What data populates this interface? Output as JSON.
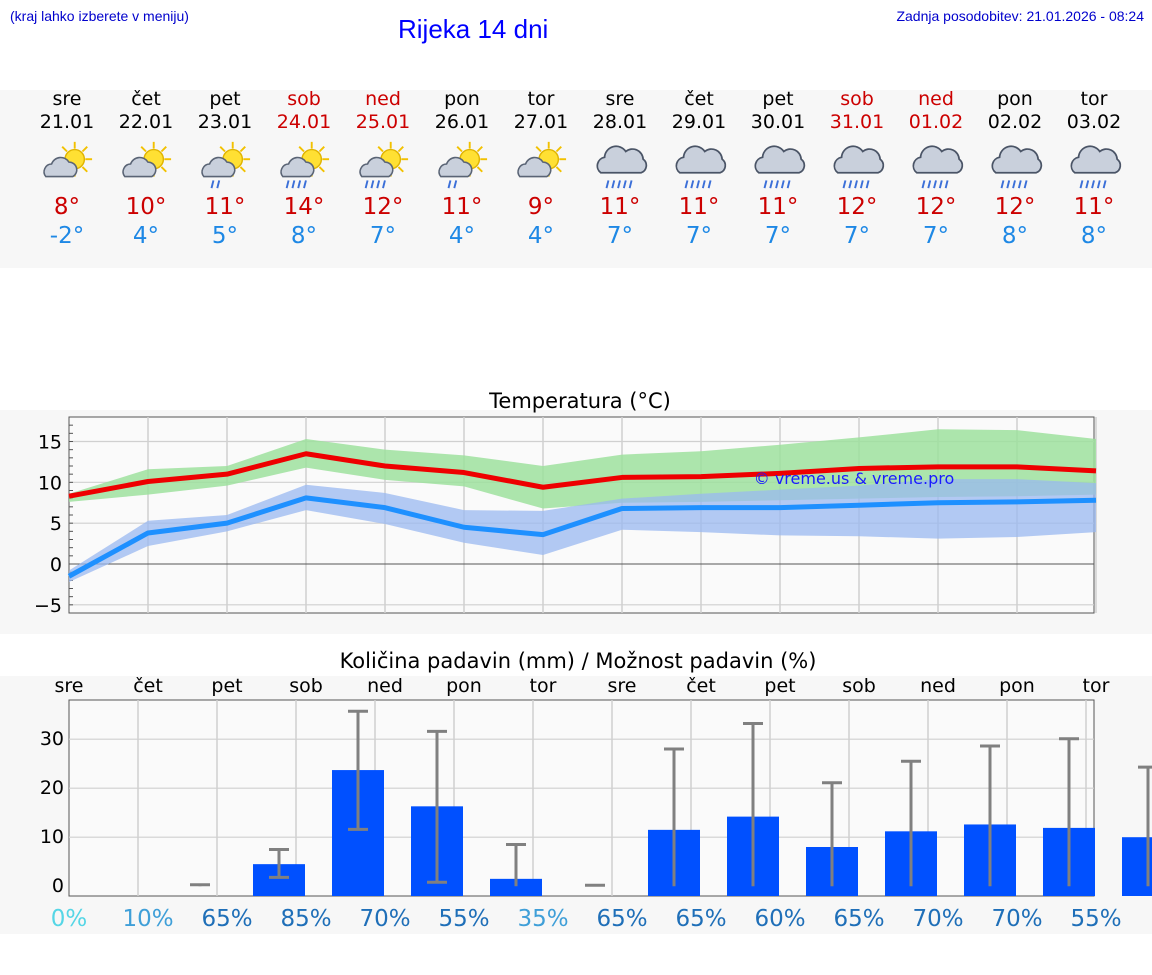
{
  "header": {
    "note": "(kraj lahko izberete v meniju)",
    "title": "Rijeka 14 dni",
    "updated": "Zadnja posodobitev: 21.01.2026 - 08:24"
  },
  "days": [
    {
      "name": "sre",
      "date": "21.01",
      "tmax": "8°",
      "tmin": "-2°",
      "icon": "partly-sunny-icon",
      "weekend": false
    },
    {
      "name": "čet",
      "date": "22.01",
      "tmax": "10°",
      "tmin": "4°",
      "icon": "partly-sunny-icon",
      "weekend": false
    },
    {
      "name": "pet",
      "date": "23.01",
      "tmax": "11°",
      "tmin": "5°",
      "icon": "sun-shower-icon",
      "weekend": false
    },
    {
      "name": "sob",
      "date": "24.01",
      "tmax": "14°",
      "tmin": "8°",
      "icon": "sun-heavy-rain-icon",
      "weekend": true
    },
    {
      "name": "ned",
      "date": "25.01",
      "tmax": "12°",
      "tmin": "7°",
      "icon": "sun-heavy-rain-icon",
      "weekend": true
    },
    {
      "name": "pon",
      "date": "26.01",
      "tmax": "11°",
      "tmin": "4°",
      "icon": "sun-shower-icon",
      "weekend": false
    },
    {
      "name": "tor",
      "date": "27.01",
      "tmax": "9°",
      "tmin": "4°",
      "icon": "partly-sunny-icon",
      "weekend": false
    },
    {
      "name": "sre",
      "date": "28.01",
      "tmax": "11°",
      "tmin": "7°",
      "icon": "rain-cloud-icon",
      "weekend": false
    },
    {
      "name": "čet",
      "date": "29.01",
      "tmax": "11°",
      "tmin": "7°",
      "icon": "rain-cloud-icon",
      "weekend": false
    },
    {
      "name": "pet",
      "date": "30.01",
      "tmax": "11°",
      "tmin": "7°",
      "icon": "rain-cloud-icon",
      "weekend": false
    },
    {
      "name": "sob",
      "date": "31.01",
      "tmax": "12°",
      "tmin": "7°",
      "icon": "rain-cloud-icon",
      "weekend": true
    },
    {
      "name": "ned",
      "date": "01.02",
      "tmax": "12°",
      "tmin": "7°",
      "icon": "rain-cloud-icon",
      "weekend": true
    },
    {
      "name": "pon",
      "date": "02.02",
      "tmax": "12°",
      "tmin": "8°",
      "icon": "rain-cloud-icon",
      "weekend": false
    },
    {
      "name": "tor",
      "date": "03.02",
      "tmax": "11°",
      "tmin": "8°",
      "icon": "rain-cloud-icon",
      "weekend": false
    }
  ],
  "colors": {
    "max_line": "#ee0000",
    "max_band": "#9ee09e",
    "min_line": "#1e90ff",
    "min_band": "#9ab8f0",
    "bar": "#0050ff",
    "err": "#808080",
    "weekend": "#cc0000",
    "min_text": "#1e88e5"
  },
  "chart_data": [
    {
      "type": "line",
      "title": "Temperatura (°C)",
      "watermark": "© vreme.us & vreme.pro",
      "x": [
        0,
        1,
        2,
        3,
        4,
        5,
        6,
        7,
        8,
        9,
        10,
        11,
        12,
        13
      ],
      "ylim": [
        -6,
        18
      ],
      "yticks": [
        -5,
        0,
        5,
        10,
        15
      ],
      "ytick_labels": [
        "−5",
        "0",
        "5",
        "10",
        "15"
      ],
      "series": [
        {
          "name": "max",
          "values": [
            8.3,
            10.1,
            11.0,
            13.5,
            12.0,
            11.2,
            9.4,
            10.6,
            10.7,
            11.1,
            11.7,
            11.9,
            11.9,
            11.4
          ],
          "band_low": [
            7.6,
            8.5,
            9.6,
            11.8,
            10.3,
            9.5,
            6.8,
            7.5,
            7.6,
            7.8,
            8.0,
            8.2,
            8.3,
            8.5
          ],
          "band_high": [
            8.6,
            11.6,
            12.0,
            15.3,
            14.0,
            13.3,
            12.0,
            13.4,
            13.8,
            14.6,
            15.5,
            16.5,
            16.4,
            15.3
          ]
        },
        {
          "name": "min",
          "values": [
            -1.5,
            3.8,
            5.0,
            8.1,
            6.9,
            4.5,
            3.6,
            6.8,
            6.9,
            6.9,
            7.2,
            7.5,
            7.6,
            7.8
          ],
          "band_low": [
            -2.2,
            2.2,
            4.0,
            6.6,
            4.9,
            2.6,
            1.1,
            4.2,
            3.9,
            3.5,
            3.4,
            3.1,
            3.3,
            3.9
          ],
          "band_high": [
            -0.8,
            5.3,
            6.0,
            9.7,
            8.7,
            6.6,
            6.5,
            8.0,
            8.6,
            9.1,
            9.6,
            10.4,
            10.4,
            9.9
          ]
        }
      ]
    },
    {
      "type": "bar",
      "title": "Količina padavin (mm) / Možnost padavin (%)",
      "categories": [
        "sre",
        "čet",
        "pet",
        "sob",
        "ned",
        "pon",
        "tor",
        "sre",
        "čet",
        "pet",
        "sob",
        "ned",
        "pon",
        "tor"
      ],
      "values": [
        0,
        0,
        4.5,
        23.7,
        16.3,
        1.5,
        0,
        11.5,
        14.2,
        8.0,
        11.2,
        12.6,
        11.9,
        10.0
      ],
      "err_low": [
        0,
        0,
        1.8,
        11.6,
        0.8,
        0,
        0,
        0,
        0,
        0,
        0,
        0,
        0,
        0
      ],
      "err_high": [
        0,
        0.3,
        7.5,
        35.7,
        31.6,
        8.5,
        0.2,
        28.0,
        33.2,
        21.1,
        25.5,
        28.6,
        30.1,
        24.3
      ],
      "ylim": [
        -2,
        38
      ],
      "yticks": [
        0,
        10,
        20,
        30
      ],
      "probabilities": [
        "0%",
        "10%",
        "65%",
        "85%",
        "70%",
        "55%",
        "35%",
        "65%",
        "65%",
        "60%",
        "65%",
        "70%",
        "70%",
        "55%"
      ],
      "prob_colors": [
        "#55d6e6",
        "#3f9fd8",
        "#1f6fb8",
        "#1f6fb8",
        "#1f6fb8",
        "#1f6fb8",
        "#3f9fd8",
        "#1f6fb8",
        "#1f6fb8",
        "#1f6fb8",
        "#1f6fb8",
        "#1f6fb8",
        "#1f6fb8",
        "#1f6fb8"
      ]
    }
  ]
}
